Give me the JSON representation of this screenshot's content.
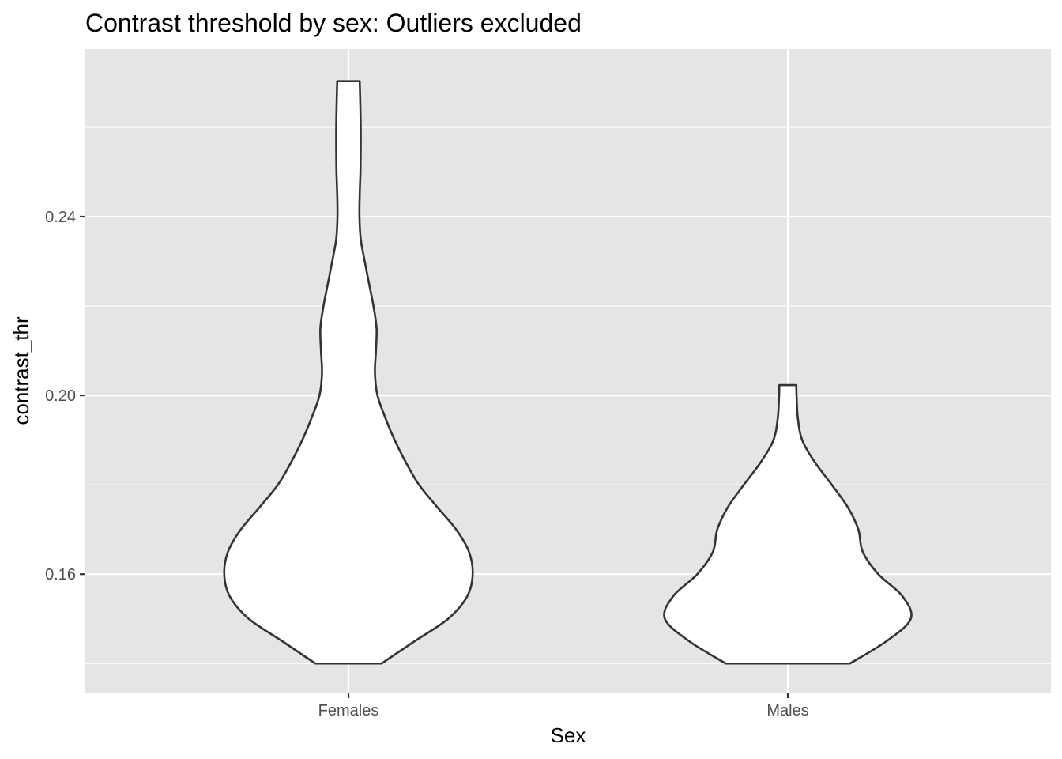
{
  "chart_data": {
    "type": "violin",
    "title": "Contrast threshold by sex: Outliers excluded",
    "xlabel": "Sex",
    "ylabel": "contrast_thr",
    "categories": [
      "Females",
      "Males"
    ],
    "ylim": [
      0.1335,
      0.2775
    ],
    "y_ticks": [
      0.16,
      0.2,
      0.24
    ],
    "y_tick_labels": [
      "0.16",
      "0.20",
      "0.24"
    ],
    "y_minor_ticks": [
      0.14,
      0.18,
      0.22,
      0.26
    ],
    "grid": true,
    "legend": "none",
    "panel_background": "#e5e5e5",
    "grid_color": "#ffffff",
    "violin_fill": "#ffffff",
    "violin_outline": "#333333",
    "series": [
      {
        "category": "Females",
        "range": [
          0.14,
          0.2703
        ],
        "density_profile": [
          [
            0.14,
            0.265
          ],
          [
            0.145,
            0.53
          ],
          [
            0.15,
            0.798
          ],
          [
            0.155,
            0.95
          ],
          [
            0.16,
            0.995
          ],
          [
            0.165,
            0.965
          ],
          [
            0.17,
            0.862
          ],
          [
            0.175,
            0.711
          ],
          [
            0.18,
            0.565
          ],
          [
            0.185,
            0.46
          ],
          [
            0.19,
            0.37
          ],
          [
            0.195,
            0.295
          ],
          [
            0.2,
            0.232
          ],
          [
            0.205,
            0.212
          ],
          [
            0.21,
            0.22
          ],
          [
            0.215,
            0.225
          ],
          [
            0.22,
            0.2
          ],
          [
            0.225,
            0.165
          ],
          [
            0.23,
            0.13
          ],
          [
            0.235,
            0.098
          ],
          [
            0.24,
            0.088
          ],
          [
            0.245,
            0.09
          ],
          [
            0.25,
            0.096
          ],
          [
            0.255,
            0.098
          ],
          [
            0.26,
            0.098
          ],
          [
            0.265,
            0.095
          ],
          [
            0.2703,
            0.09
          ]
        ]
      },
      {
        "category": "Males",
        "range": [
          0.14,
          0.2023
        ],
        "density_profile": [
          [
            0.14,
            0.497
          ],
          [
            0.145,
            0.79
          ],
          [
            0.15,
            0.985
          ],
          [
            0.155,
            0.92
          ],
          [
            0.16,
            0.725
          ],
          [
            0.165,
            0.6
          ],
          [
            0.17,
            0.565
          ],
          [
            0.175,
            0.48
          ],
          [
            0.18,
            0.352
          ],
          [
            0.185,
            0.218
          ],
          [
            0.19,
            0.115
          ],
          [
            0.195,
            0.08
          ],
          [
            0.2,
            0.07
          ],
          [
            0.2023,
            0.068
          ]
        ]
      }
    ]
  }
}
